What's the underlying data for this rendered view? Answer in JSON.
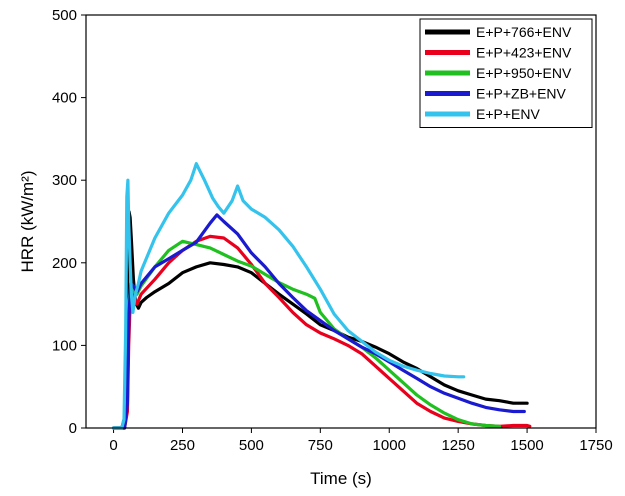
{
  "chart_data": {
    "type": "line",
    "title": "",
    "xlabel": "Time (s)",
    "ylabel": "HRR (kW/m²)",
    "xlim": [
      -100,
      1750
    ],
    "ylim": [
      0,
      500
    ],
    "xticks": [
      0,
      250,
      500,
      750,
      1000,
      1250,
      1500,
      1750
    ],
    "yticks": [
      0,
      100,
      200,
      300,
      400,
      500
    ],
    "grid": false,
    "legend_position": "top-right",
    "series": [
      {
        "name": "E+P+766+ENV",
        "color": "#000000",
        "points": [
          [
            0,
            0
          ],
          [
            30,
            0
          ],
          [
            42,
            15
          ],
          [
            48,
            120
          ],
          [
            52,
            200
          ],
          [
            56,
            262
          ],
          [
            60,
            255
          ],
          [
            65,
            225
          ],
          [
            72,
            180
          ],
          [
            80,
            152
          ],
          [
            90,
            145
          ],
          [
            100,
            152
          ],
          [
            120,
            158
          ],
          [
            150,
            165
          ],
          [
            200,
            175
          ],
          [
            250,
            188
          ],
          [
            300,
            195
          ],
          [
            350,
            200
          ],
          [
            400,
            198
          ],
          [
            450,
            195
          ],
          [
            500,
            188
          ],
          [
            550,
            175
          ],
          [
            600,
            162
          ],
          [
            650,
            150
          ],
          [
            700,
            138
          ],
          [
            750,
            125
          ],
          [
            800,
            118
          ],
          [
            850,
            110
          ],
          [
            900,
            105
          ],
          [
            950,
            98
          ],
          [
            1000,
            90
          ],
          [
            1050,
            80
          ],
          [
            1100,
            72
          ],
          [
            1150,
            62
          ],
          [
            1200,
            52
          ],
          [
            1250,
            45
          ],
          [
            1300,
            40
          ],
          [
            1350,
            35
          ],
          [
            1400,
            33
          ],
          [
            1450,
            30
          ],
          [
            1500,
            30
          ]
        ]
      },
      {
        "name": "E+P+423+ENV",
        "color": "#e8001c",
        "points": [
          [
            0,
            0
          ],
          [
            40,
            0
          ],
          [
            50,
            20
          ],
          [
            55,
            100
          ],
          [
            60,
            150
          ],
          [
            65,
            168
          ],
          [
            75,
            158
          ],
          [
            85,
            150
          ],
          [
            100,
            162
          ],
          [
            150,
            180
          ],
          [
            200,
            200
          ],
          [
            250,
            215
          ],
          [
            300,
            226
          ],
          [
            350,
            232
          ],
          [
            400,
            230
          ],
          [
            450,
            218
          ],
          [
            500,
            198
          ],
          [
            550,
            175
          ],
          [
            600,
            158
          ],
          [
            650,
            140
          ],
          [
            700,
            125
          ],
          [
            750,
            115
          ],
          [
            800,
            108
          ],
          [
            850,
            100
          ],
          [
            900,
            90
          ],
          [
            950,
            75
          ],
          [
            1000,
            60
          ],
          [
            1050,
            45
          ],
          [
            1100,
            30
          ],
          [
            1150,
            20
          ],
          [
            1200,
            12
          ],
          [
            1250,
            8
          ],
          [
            1300,
            5
          ],
          [
            1350,
            3
          ],
          [
            1400,
            2
          ],
          [
            1450,
            3
          ],
          [
            1500,
            3
          ],
          [
            1510,
            2
          ]
        ]
      },
      {
        "name": "E+P+950+ENV",
        "color": "#1fc01f",
        "points": [
          [
            0,
            0
          ],
          [
            40,
            0
          ],
          [
            48,
            40
          ],
          [
            55,
            150
          ],
          [
            62,
            170
          ],
          [
            72,
            165
          ],
          [
            85,
            162
          ],
          [
            100,
            172
          ],
          [
            150,
            195
          ],
          [
            200,
            215
          ],
          [
            250,
            226
          ],
          [
            300,
            222
          ],
          [
            350,
            218
          ],
          [
            400,
            210
          ],
          [
            450,
            202
          ],
          [
            500,
            196
          ],
          [
            550,
            186
          ],
          [
            600,
            176
          ],
          [
            650,
            168
          ],
          [
            700,
            162
          ],
          [
            730,
            157
          ],
          [
            750,
            140
          ],
          [
            800,
            120
          ],
          [
            850,
            108
          ],
          [
            900,
            98
          ],
          [
            950,
            85
          ],
          [
            1000,
            70
          ],
          [
            1050,
            55
          ],
          [
            1100,
            40
          ],
          [
            1150,
            28
          ],
          [
            1200,
            18
          ],
          [
            1250,
            10
          ],
          [
            1300,
            5
          ],
          [
            1350,
            3
          ],
          [
            1400,
            2
          ]
        ]
      },
      {
        "name": "E+P+ZB+ENV",
        "color": "#1a1ad0",
        "points": [
          [
            0,
            0
          ],
          [
            40,
            0
          ],
          [
            50,
            30
          ],
          [
            55,
            130
          ],
          [
            62,
            175
          ],
          [
            72,
            172
          ],
          [
            85,
            165
          ],
          [
            100,
            175
          ],
          [
            150,
            195
          ],
          [
            200,
            205
          ],
          [
            250,
            215
          ],
          [
            300,
            225
          ],
          [
            350,
            248
          ],
          [
            375,
            258
          ],
          [
            400,
            250
          ],
          [
            450,
            235
          ],
          [
            500,
            212
          ],
          [
            550,
            195
          ],
          [
            600,
            175
          ],
          [
            650,
            158
          ],
          [
            700,
            142
          ],
          [
            750,
            130
          ],
          [
            800,
            118
          ],
          [
            850,
            108
          ],
          [
            900,
            98
          ],
          [
            950,
            90
          ],
          [
            1000,
            80
          ],
          [
            1050,
            70
          ],
          [
            1100,
            60
          ],
          [
            1150,
            50
          ],
          [
            1200,
            42
          ],
          [
            1250,
            36
          ],
          [
            1300,
            30
          ],
          [
            1350,
            25
          ],
          [
            1400,
            22
          ],
          [
            1450,
            20
          ],
          [
            1490,
            20
          ]
        ]
      },
      {
        "name": "E+P+ENV",
        "color": "#33c3ec",
        "points": [
          [
            0,
            0
          ],
          [
            30,
            0
          ],
          [
            38,
            10
          ],
          [
            44,
            120
          ],
          [
            48,
            280
          ],
          [
            52,
            300
          ],
          [
            55,
            250
          ],
          [
            60,
            200
          ],
          [
            65,
            160
          ],
          [
            70,
            140
          ],
          [
            78,
            160
          ],
          [
            90,
            175
          ],
          [
            100,
            190
          ],
          [
            150,
            230
          ],
          [
            200,
            260
          ],
          [
            250,
            282
          ],
          [
            280,
            300
          ],
          [
            300,
            320
          ],
          [
            330,
            300
          ],
          [
            360,
            278
          ],
          [
            380,
            268
          ],
          [
            400,
            260
          ],
          [
            430,
            275
          ],
          [
            450,
            293
          ],
          [
            470,
            275
          ],
          [
            500,
            265
          ],
          [
            550,
            255
          ],
          [
            600,
            240
          ],
          [
            650,
            220
          ],
          [
            700,
            195
          ],
          [
            750,
            168
          ],
          [
            800,
            138
          ],
          [
            850,
            118
          ],
          [
            900,
            105
          ],
          [
            950,
            92
          ],
          [
            1000,
            82
          ],
          [
            1050,
            75
          ],
          [
            1100,
            70
          ],
          [
            1150,
            66
          ],
          [
            1200,
            63
          ],
          [
            1250,
            62
          ],
          [
            1270,
            62
          ]
        ]
      }
    ]
  }
}
